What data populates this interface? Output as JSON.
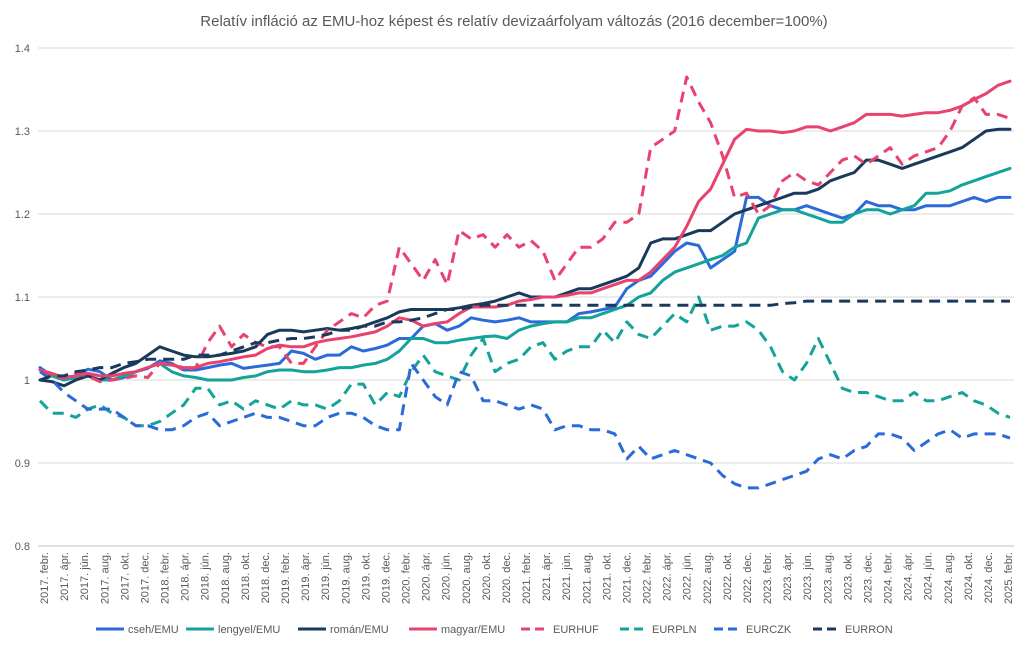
{
  "chart_data": {
    "type": "line",
    "title": "Relatív infláció az EMU-hoz képest és relatív devizaárfolyam változás (2016 december=100%)",
    "xlabel": "",
    "ylabel": "",
    "ylim": [
      0.8,
      1.4
    ],
    "yticks": [
      "0.8",
      "0.9",
      "1",
      "1.1",
      "1.2",
      "1.3",
      "1.4"
    ],
    "grid": true,
    "legend": "bottom",
    "x_tick_labels": [
      "2017. febr.",
      "2017. ápr.",
      "2017. jún.",
      "2017. aug.",
      "2017. okt.",
      "2017. dec.",
      "2018. febr.",
      "2018. ápr.",
      "2018. jún.",
      "2018. aug.",
      "2018. okt.",
      "2018. dec.",
      "2019. febr.",
      "2019. ápr.",
      "2019. jún.",
      "2019. aug.",
      "2019. okt.",
      "2019. dec.",
      "2020. febr.",
      "2020. ápr.",
      "2020. jún.",
      "2020. aug.",
      "2020. okt.",
      "2020. dec.",
      "2021. febr.",
      "2021. ápr.",
      "2021. jún.",
      "2021. aug.",
      "2021. okt.",
      "2021. dec.",
      "2022. febr.",
      "2022. ápr.",
      "2022. jún.",
      "2022. aug.",
      "2022. okt.",
      "2022. dec.",
      "2023. febr.",
      "2023. ápr.",
      "2023. jún.",
      "2023. aug.",
      "2023. okt.",
      "2023. dec.",
      "2024. febr.",
      "2024. ápr.",
      "2024. jún.",
      "2024. aug.",
      "2024. okt.",
      "2024. dec.",
      "2025. febr."
    ],
    "series": [
      {
        "name": "cseh/EMU",
        "color": "#2b6bd9",
        "dash": "solid",
        "values": [
          1.015,
          1.005,
          1.0,
          1.005,
          1.013,
          1.01,
          1.0,
          1.003,
          1.01,
          1.014,
          1.023,
          1.02,
          1.012,
          1.012,
          1.015,
          1.018,
          1.02,
          1.014,
          1.016,
          1.018,
          1.02,
          1.035,
          1.032,
          1.025,
          1.03,
          1.03,
          1.04,
          1.035,
          1.038,
          1.042,
          1.05,
          1.05,
          1.065,
          1.068,
          1.06,
          1.065,
          1.075,
          1.072,
          1.07,
          1.072,
          1.075,
          1.07,
          1.07,
          1.07,
          1.07,
          1.08,
          1.082,
          1.085,
          1.088,
          1.11,
          1.12,
          1.125,
          1.14,
          1.155,
          1.165,
          1.162,
          1.135,
          1.145,
          1.155,
          1.22,
          1.22,
          1.21,
          1.205,
          1.205,
          1.21,
          1.205,
          1.2,
          1.195,
          1.2,
          1.215,
          1.21,
          1.21,
          1.205,
          1.205,
          1.21,
          1.21,
          1.21,
          1.215,
          1.22,
          1.215,
          1.22,
          1.22
        ]
      },
      {
        "name": "lengyel/EMU",
        "color": "#13a39a",
        "dash": "solid",
        "values": [
          1.012,
          1.005,
          1.0,
          1.003,
          1.005,
          1.0,
          1.0,
          1.005,
          1.01,
          1.015,
          1.02,
          1.01,
          1.005,
          1.003,
          1.0,
          1.0,
          1.0,
          1.003,
          1.005,
          1.01,
          1.012,
          1.012,
          1.01,
          1.01,
          1.012,
          1.015,
          1.015,
          1.018,
          1.02,
          1.025,
          1.035,
          1.05,
          1.05,
          1.045,
          1.045,
          1.048,
          1.05,
          1.052,
          1.053,
          1.05,
          1.06,
          1.065,
          1.068,
          1.07,
          1.07,
          1.075,
          1.075,
          1.08,
          1.085,
          1.09,
          1.1,
          1.105,
          1.12,
          1.13,
          1.135,
          1.14,
          1.145,
          1.15,
          1.16,
          1.165,
          1.195,
          1.2,
          1.205,
          1.205,
          1.2,
          1.195,
          1.19,
          1.19,
          1.2,
          1.205,
          1.205,
          1.2,
          1.205,
          1.21,
          1.225,
          1.225,
          1.228,
          1.235,
          1.24,
          1.245,
          1.25,
          1.255
        ]
      },
      {
        "name": "román/EMU",
        "color": "#1a3a5c",
        "dash": "solid",
        "values": [
          1.0,
          0.998,
          0.993,
          1.0,
          1.005,
          1.0,
          1.008,
          1.015,
          1.02,
          1.03,
          1.04,
          1.035,
          1.03,
          1.028,
          1.028,
          1.03,
          1.032,
          1.035,
          1.04,
          1.055,
          1.06,
          1.06,
          1.058,
          1.06,
          1.062,
          1.06,
          1.062,
          1.065,
          1.07,
          1.075,
          1.082,
          1.085,
          1.085,
          1.085,
          1.085,
          1.087,
          1.09,
          1.092,
          1.095,
          1.1,
          1.105,
          1.1,
          1.1,
          1.1,
          1.105,
          1.11,
          1.11,
          1.115,
          1.12,
          1.125,
          1.135,
          1.165,
          1.17,
          1.17,
          1.175,
          1.18,
          1.18,
          1.19,
          1.2,
          1.205,
          1.21,
          1.215,
          1.22,
          1.225,
          1.225,
          1.23,
          1.24,
          1.245,
          1.25,
          1.265,
          1.265,
          1.26,
          1.255,
          1.26,
          1.265,
          1.27,
          1.275,
          1.28,
          1.29,
          1.3,
          1.302,
          1.302
        ]
      },
      {
        "name": "magyar/EMU",
        "color": "#e8426e",
        "dash": "solid",
        "values": [
          1.012,
          1.008,
          1.003,
          1.005,
          1.008,
          1.005,
          1.005,
          1.008,
          1.01,
          1.015,
          1.02,
          1.018,
          1.015,
          1.015,
          1.02,
          1.022,
          1.025,
          1.028,
          1.03,
          1.038,
          1.042,
          1.04,
          1.04,
          1.045,
          1.048,
          1.05,
          1.052,
          1.055,
          1.058,
          1.065,
          1.075,
          1.072,
          1.065,
          1.068,
          1.07,
          1.08,
          1.088,
          1.088,
          1.088,
          1.09,
          1.095,
          1.097,
          1.1,
          1.1,
          1.102,
          1.105,
          1.105,
          1.11,
          1.115,
          1.12,
          1.12,
          1.13,
          1.145,
          1.16,
          1.185,
          1.215,
          1.23,
          1.26,
          1.29,
          1.302,
          1.3,
          1.3,
          1.298,
          1.3,
          1.305,
          1.305,
          1.3,
          1.305,
          1.31,
          1.32,
          1.32,
          1.32,
          1.318,
          1.32,
          1.322,
          1.322,
          1.325,
          1.33,
          1.338,
          1.345,
          1.355,
          1.36
        ]
      },
      {
        "name": "EURHUF",
        "color": "#e8426e",
        "dash": "dashed",
        "values": [
          1.01,
          1.005,
          1.002,
          1.008,
          1.005,
          0.998,
          1.0,
          1.002,
          1.005,
          1.003,
          1.02,
          1.02,
          1.012,
          1.015,
          1.045,
          1.065,
          1.04,
          1.055,
          1.045,
          1.04,
          1.04,
          1.02,
          1.02,
          1.04,
          1.06,
          1.07,
          1.08,
          1.075,
          1.09,
          1.095,
          1.16,
          1.14,
          1.12,
          1.145,
          1.115,
          1.18,
          1.17,
          1.175,
          1.16,
          1.175,
          1.16,
          1.168,
          1.155,
          1.12,
          1.14,
          1.16,
          1.16,
          1.17,
          1.19,
          1.19,
          1.2,
          1.28,
          1.29,
          1.3,
          1.365,
          1.335,
          1.31,
          1.27,
          1.22,
          1.225,
          1.2,
          1.21,
          1.24,
          1.25,
          1.24,
          1.235,
          1.25,
          1.265,
          1.27,
          1.26,
          1.27,
          1.28,
          1.26,
          1.27,
          1.275,
          1.28,
          1.3,
          1.33,
          1.34,
          1.32,
          1.32,
          1.315
        ]
      },
      {
        "name": "EURPLN",
        "color": "#13a39a",
        "dash": "dashed",
        "values": [
          0.975,
          0.96,
          0.96,
          0.955,
          0.965,
          0.97,
          0.96,
          0.955,
          0.945,
          0.945,
          0.95,
          0.96,
          0.97,
          0.99,
          0.99,
          0.97,
          0.975,
          0.965,
          0.975,
          0.97,
          0.965,
          0.975,
          0.97,
          0.97,
          0.965,
          0.975,
          0.995,
          0.995,
          0.97,
          0.985,
          0.98,
          1.01,
          1.03,
          1.01,
          1.005,
          1.0,
          1.03,
          1.05,
          1.01,
          1.02,
          1.025,
          1.04,
          1.045,
          1.025,
          1.035,
          1.04,
          1.04,
          1.06,
          1.045,
          1.07,
          1.055,
          1.05,
          1.065,
          1.08,
          1.07,
          1.1,
          1.06,
          1.065,
          1.065,
          1.07,
          1.06,
          1.04,
          1.01,
          1.0,
          1.02,
          1.05,
          1.02,
          0.99,
          0.985,
          0.985,
          0.98,
          0.975,
          0.975,
          0.985,
          0.975,
          0.975,
          0.98,
          0.985,
          0.975,
          0.97,
          0.96,
          0.955
        ]
      },
      {
        "name": "EURCZK",
        "color": "#2b6bd9",
        "dash": "dashed",
        "values": [
          1.01,
          1.0,
          0.985,
          0.975,
          0.965,
          0.965,
          0.965,
          0.955,
          0.945,
          0.945,
          0.94,
          0.94,
          0.945,
          0.955,
          0.96,
          0.945,
          0.95,
          0.955,
          0.96,
          0.955,
          0.955,
          0.95,
          0.945,
          0.945,
          0.955,
          0.96,
          0.96,
          0.955,
          0.945,
          0.94,
          0.94,
          1.02,
          1.0,
          0.98,
          0.97,
          1.01,
          1.005,
          0.975,
          0.975,
          0.97,
          0.965,
          0.97,
          0.965,
          0.94,
          0.945,
          0.945,
          0.94,
          0.94,
          0.935,
          0.905,
          0.92,
          0.905,
          0.91,
          0.915,
          0.91,
          0.905,
          0.9,
          0.885,
          0.875,
          0.87,
          0.87,
          0.875,
          0.88,
          0.885,
          0.89,
          0.905,
          0.91,
          0.905,
          0.915,
          0.92,
          0.935,
          0.935,
          0.93,
          0.915,
          0.925,
          0.935,
          0.94,
          0.93,
          0.935,
          0.935,
          0.935,
          0.93
        ]
      },
      {
        "name": "EURRON",
        "color": "#1a3a5c",
        "dash": "dashed",
        "values": [
          1.0,
          1.005,
          1.005,
          1.01,
          1.012,
          1.015,
          1.015,
          1.02,
          1.022,
          1.025,
          1.025,
          1.025,
          1.025,
          1.03,
          1.03,
          1.03,
          1.035,
          1.04,
          1.045,
          1.045,
          1.048,
          1.05,
          1.05,
          1.052,
          1.055,
          1.06,
          1.06,
          1.065,
          1.065,
          1.07,
          1.07,
          1.072,
          1.075,
          1.08,
          1.085,
          1.085,
          1.088,
          1.09,
          1.09,
          1.09,
          1.09,
          1.09,
          1.09,
          1.09,
          1.09,
          1.09,
          1.09,
          1.09,
          1.09,
          1.09,
          1.09,
          1.09,
          1.09,
          1.09,
          1.09,
          1.09,
          1.09,
          1.09,
          1.09,
          1.09,
          1.09,
          1.09,
          1.092,
          1.093,
          1.095,
          1.095,
          1.095,
          1.095,
          1.095,
          1.095,
          1.095,
          1.095,
          1.095,
          1.095,
          1.095,
          1.095,
          1.095,
          1.095,
          1.095,
          1.095,
          1.095,
          1.095
        ]
      }
    ]
  }
}
